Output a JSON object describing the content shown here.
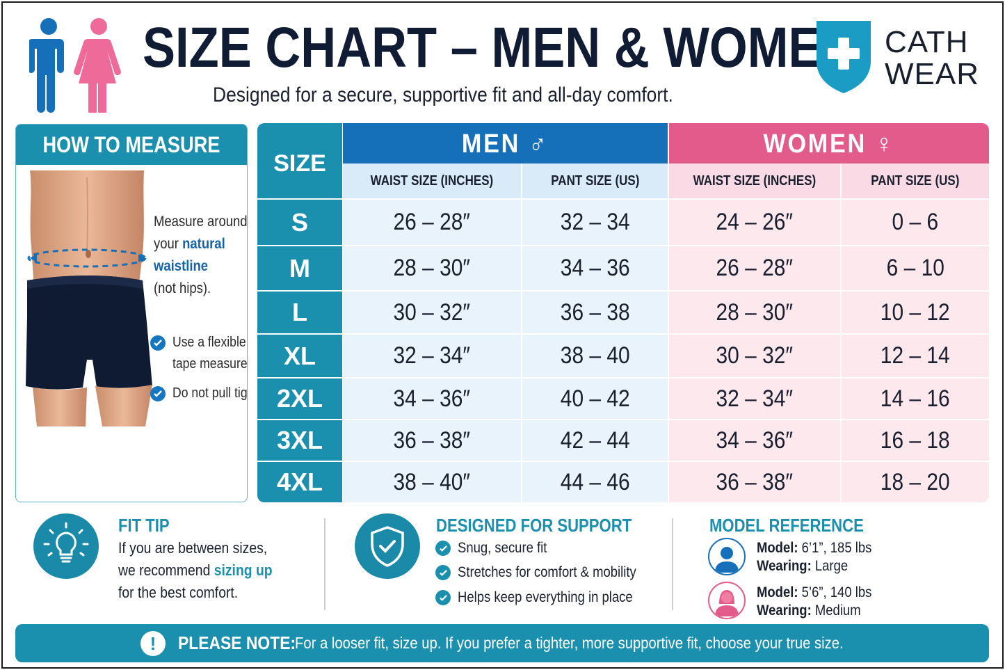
{
  "header": {
    "title": "SIZE CHART – MEN & WOMEN",
    "subtitle": "Designed for a secure, supportive fit and all-day comfort.",
    "icons": [
      "man-icon",
      "woman-icon"
    ],
    "logo": {
      "line1": "CATH",
      "line2": "WEAR",
      "icon": "shield-cross-icon"
    }
  },
  "how_to_measure": {
    "title": "HOW TO MEASURE",
    "instruction": {
      "part1": "Measure around",
      "part2": "your",
      "highlight1": "natural",
      "highlight2": "waistline",
      "part3": "(not hips)."
    },
    "tips": [
      {
        "line1": "Use a flexible",
        "line2": "tape measure"
      },
      {
        "line1": "Do not pull tight"
      }
    ]
  },
  "table": {
    "size_header": "SIZE",
    "men": {
      "title": "MEN ♂",
      "col1": "WAIST SIZE (INCHES)",
      "col2": "PANT SIZE (US)"
    },
    "women": {
      "title": "WOMEN ♀",
      "col1": "WAIST SIZE (INCHES)",
      "col2": "PANT SIZE (US)"
    },
    "rows": [
      {
        "size": "S",
        "men_waist": "26 – 28″",
        "men_pant": "32 – 34",
        "women_waist": "24 – 26″",
        "women_pant": "0 – 6"
      },
      {
        "size": "M",
        "men_waist": "28 – 30″",
        "men_pant": "34 – 36",
        "women_waist": "26 – 28″",
        "women_pant": "6 – 10"
      },
      {
        "size": "L",
        "men_waist": "30 – 32″",
        "men_pant": "36 – 38",
        "women_waist": "28 – 30″",
        "women_pant": "10 – 12"
      },
      {
        "size": "XL",
        "men_waist": "32 – 34″",
        "men_pant": "38 – 40",
        "women_waist": "30 – 32″",
        "women_pant": "12 – 14"
      },
      {
        "size": "2XL",
        "men_waist": "34 – 36″",
        "men_pant": "40 – 42",
        "women_waist": "32 – 34″",
        "women_pant": "14 – 16"
      },
      {
        "size": "3XL",
        "men_waist": "36 – 38″",
        "men_pant": "42 – 44",
        "women_waist": "34 – 36″",
        "women_pant": "16 – 18"
      },
      {
        "size": "4XL",
        "men_waist": "38 – 40″",
        "men_pant": "44 – 46",
        "women_waist": "36 – 38″",
        "women_pant": "18 – 20"
      }
    ]
  },
  "fit_tip": {
    "title": "FIT TIP",
    "line1": "If you are between sizes,",
    "line2a": "we recommend",
    "highlight": "sizing up",
    "line3": "for the best comfort.",
    "icon": "lightbulb-icon"
  },
  "support": {
    "title": "DESIGNED FOR SUPPORT",
    "icon": "shield-check-icon",
    "items": [
      "Snug, secure fit",
      "Stretches for comfort & mobility",
      "Helps keep everything in place"
    ]
  },
  "model_reference": {
    "title": "MODEL REFERENCE",
    "models": [
      {
        "model_label": "Model:",
        "model_value": "6’1”, 185 lbs",
        "wearing_label": "Wearing:",
        "wearing_value": "Large"
      },
      {
        "model_label": "Model:",
        "model_value": "5’6”, 140 lbs",
        "wearing_label": "Wearing:",
        "wearing_value": "Medium"
      }
    ]
  },
  "note": {
    "icon_text": "!",
    "label": "PLEASE NOTE:",
    "text": "For a looser fit, size up. If you prefer a tighter, more supportive fit, choose your true size."
  },
  "colors": {
    "teal": "#1b8fae",
    "men_blue": "#1670b9",
    "women_pink": "#e35b8a",
    "navy_title": "#0f1c33"
  }
}
